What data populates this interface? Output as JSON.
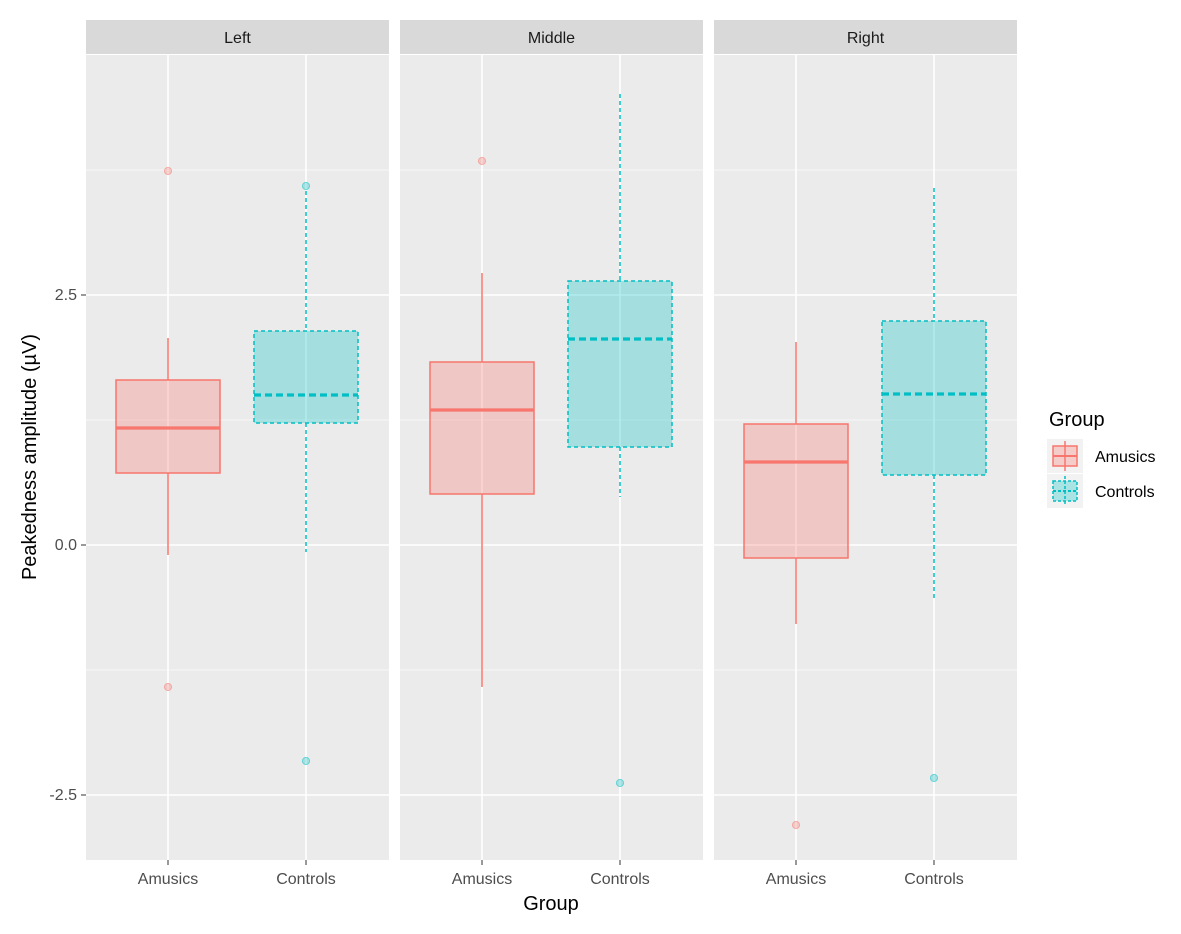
{
  "chart_data": {
    "type": "boxplot",
    "title": "",
    "xlabel": "Group",
    "ylabel": "Peakedness amplitude (µV)",
    "ylim": [
      -3.15,
      4.9
    ],
    "yticks": [
      -2.5,
      0.0,
      2.5
    ],
    "ytick_labels": [
      "-2.5",
      "0.0",
      "2.5"
    ],
    "categories": [
      "Amusics",
      "Controls"
    ],
    "legend": {
      "title": "Group",
      "position": "right",
      "entries": [
        "Amusics",
        "Controls"
      ]
    },
    "colors": {
      "Amusics": "#F8766D",
      "Controls": "#00BFC4",
      "panel_bg": "#EBEBEB",
      "strip_bg": "#D9D9D9",
      "grid": "#FFFFFF"
    },
    "panels": [
      {
        "label": "Left",
        "boxes": [
          {
            "group": "Amusics",
            "min": -0.1,
            "q1": 0.72,
            "median": 1.17,
            "q3": 1.65,
            "max": 2.07,
            "outliers": [
              3.74,
              -1.42
            ]
          },
          {
            "group": "Controls",
            "min": -0.07,
            "q1": 1.22,
            "median": 1.5,
            "q3": 2.14,
            "max": 3.54,
            "outliers": [
              3.59,
              -2.16
            ]
          }
        ]
      },
      {
        "label": "Middle",
        "boxes": [
          {
            "group": "Amusics",
            "min": -1.42,
            "q1": 0.51,
            "median": 1.35,
            "q3": 1.83,
            "max": 2.72,
            "outliers": [
              3.84
            ]
          },
          {
            "group": "Controls",
            "min": 0.48,
            "q1": 0.98,
            "median": 2.06,
            "q3": 2.64,
            "max": 4.51,
            "outliers": [
              -2.38
            ]
          }
        ]
      },
      {
        "label": "Right",
        "boxes": [
          {
            "group": "Amusics",
            "min": -0.79,
            "q1": -0.13,
            "median": 0.83,
            "q3": 1.21,
            "max": 2.03,
            "outliers": [
              -2.8
            ]
          },
          {
            "group": "Controls",
            "min": -0.56,
            "q1": 0.7,
            "median": 1.51,
            "q3": 2.24,
            "max": 3.57,
            "outliers": [
              -2.33
            ]
          }
        ]
      }
    ]
  }
}
